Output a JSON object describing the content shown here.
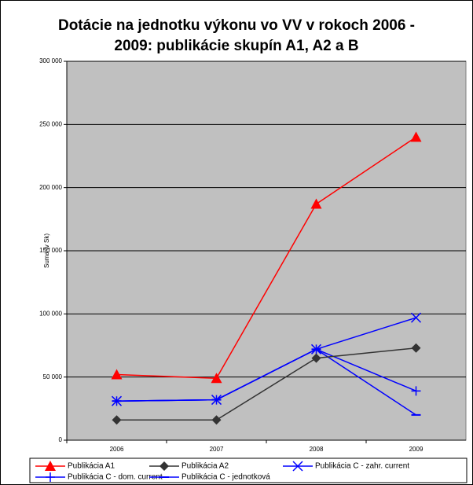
{
  "chart_data": {
    "type": "line",
    "title": "Dotácie na jednotku výkonu vo VV v rokoch 2006 - 2009: publikácie skupín A1, A2 a B",
    "y_label": "Suma (v Sk)",
    "categories": [
      "2006",
      "2007",
      "2008",
      "2009"
    ],
    "ylim": [
      0,
      300000
    ],
    "yticks": [
      0,
      {
        "value": 50000,
        "label": "50 000"
      },
      {
        "value": 100000,
        "label": "100 000"
      },
      {
        "value": 150000,
        "label": "150 000"
      },
      {
        "value": 200000,
        "label": "200 000"
      },
      {
        "value": 250000,
        "label": "250 000"
      },
      {
        "value": 300000,
        "label": "300 000"
      }
    ],
    "grid": true,
    "legend": "bottom",
    "series": [
      {
        "name": "Publikácia A1",
        "color": "#ff0000",
        "marker": "triangle",
        "values": [
          52000,
          49000,
          187000,
          240000
        ]
      },
      {
        "name": "Publikácia A2",
        "color": "#333333",
        "marker": "diamond",
        "values": [
          16000,
          16000,
          65000,
          73000
        ]
      },
      {
        "name": "Publikácia C - zahr. current",
        "color": "#0000ff",
        "marker": "x",
        "values": [
          31000,
          32000,
          72000,
          97000
        ]
      },
      {
        "name": "Publikácia C - dom. current",
        "color": "#0000ff",
        "marker": "plus",
        "values": [
          31000,
          32000,
          72000,
          39000
        ]
      },
      {
        "name": "Publikácia C - jednotková",
        "color": "#0000ff",
        "marker": "dash",
        "values": [
          31000,
          32000,
          72000,
          20000
        ]
      }
    ]
  }
}
